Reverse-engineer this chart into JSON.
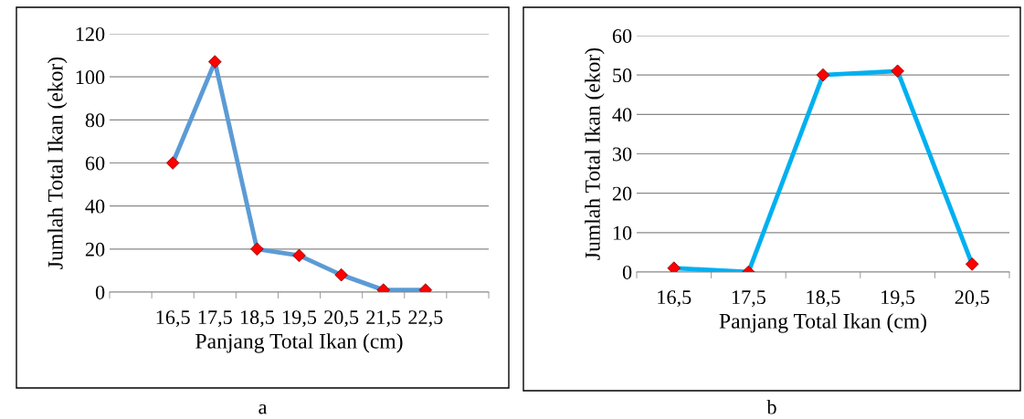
{
  "chart_data": [
    {
      "type": "line",
      "categories": [
        null,
        "16,5",
        "17,5",
        "18,5",
        "19,5",
        "20,5",
        "21,5",
        "22,5",
        null
      ],
      "xlabel": "Panjang Total Ikan (cm)",
      "ylabel": "Jumlah Total Ikan (ekor)",
      "ylim": [
        0,
        120
      ],
      "yticks": [
        0,
        20,
        40,
        60,
        80,
        100,
        120
      ],
      "grid": "y",
      "marker": "diamond",
      "line_style": "solid",
      "annotations": [
        "a"
      ],
      "series": [
        {
          "color": "#5b9bd5",
          "colors": [
            "#ff0000",
            "#ff0000",
            "#ff0000",
            "#ff0000",
            "#ff0000",
            "#ff0000",
            "#ff0000",
            "#ff0000",
            "#ff0000"
          ],
          "values": [
            null,
            60,
            107,
            20,
            17,
            8,
            1,
            1,
            null
          ]
        }
      ]
    },
    {
      "type": "line",
      "categories": [
        "16,5",
        "17,5",
        "18,5",
        "19,5",
        "20,5"
      ],
      "xlabel": "Panjang Total Ikan (cm)",
      "ylabel": "Jumlah Total Ikan (ekor)",
      "ylim": [
        0,
        60
      ],
      "yticks": [
        0,
        10,
        20,
        30,
        40,
        50,
        60
      ],
      "grid": "y",
      "marker": "diamond",
      "line_style": "solid",
      "annotations": [
        "b"
      ],
      "series": [
        {
          "color": "#00b0f0",
          "colors": [
            "#ff0000",
            "#ff0000",
            "#ff0000",
            "#ff0000",
            "#ff0000"
          ],
          "values": [
            1,
            0,
            50,
            51,
            2
          ]
        }
      ]
    }
  ]
}
